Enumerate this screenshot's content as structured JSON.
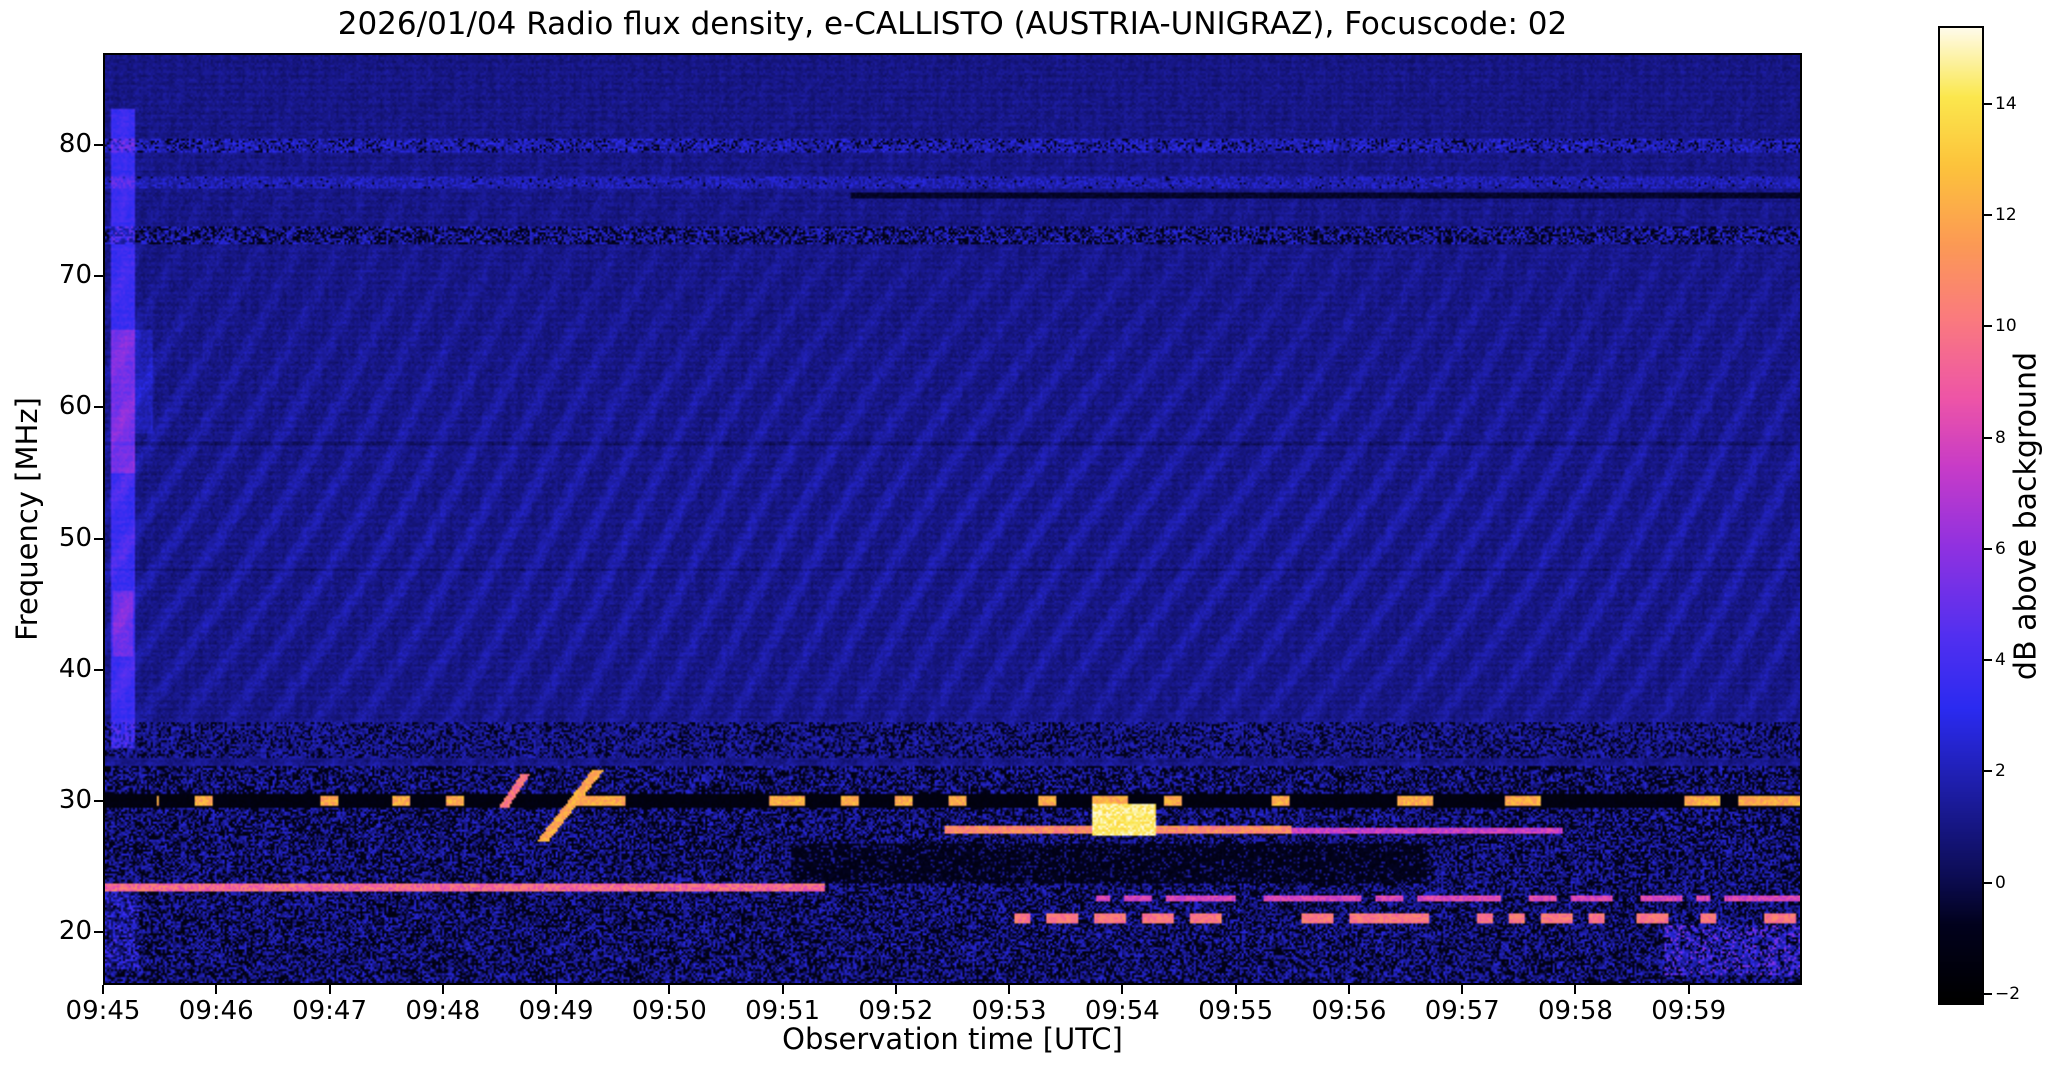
{
  "figure": {
    "title": "2026/01/04  Radio flux density, e-CALLISTO (AUSTRIA-UNIGRAZ), Focuscode: 02",
    "xlabel": "Observation time [UTC]",
    "ylabel": "Frequency [MHz]",
    "colorbar_label": "dB above background"
  },
  "chart_data": {
    "type": "heatmap",
    "title": "2026/01/04  Radio flux density, e-CALLISTO (AUSTRIA-UNIGRAZ), Focuscode: 02",
    "xlabel": "Observation time [UTC]",
    "ylabel": "Frequency [MHz]",
    "time_start_utc": "09:45",
    "time_end_utc": "10:00",
    "x_tick_labels": [
      "09:45",
      "09:46",
      "09:47",
      "09:48",
      "09:49",
      "09:50",
      "09:51",
      "09:52",
      "09:53",
      "09:54",
      "09:55",
      "09:56",
      "09:57",
      "09:58",
      "09:59"
    ],
    "y_tick_values": [
      20,
      30,
      40,
      50,
      60,
      70,
      80
    ],
    "y_tick_labels": [
      "20",
      "30",
      "40",
      "50",
      "60",
      "70",
      "80"
    ],
    "freq_range_mhz": [
      16,
      87
    ],
    "value_range": [
      -2.2,
      15.4
    ],
    "colorbar": {
      "label": "dB above background",
      "tick_values": [
        14,
        12,
        10,
        8,
        6,
        4,
        2,
        0,
        -2
      ],
      "tick_labels": [
        "14",
        "12",
        "10",
        "8",
        "6",
        "4",
        "2",
        "0",
        "−2"
      ]
    },
    "colormap_stops": [
      [
        0.0,
        "#000000"
      ],
      [
        0.08,
        "#02021e"
      ],
      [
        0.13,
        "#0d0d55"
      ],
      [
        0.22,
        "#1e1ea8"
      ],
      [
        0.3,
        "#2b2bf0"
      ],
      [
        0.38,
        "#5530f0"
      ],
      [
        0.47,
        "#9232e0"
      ],
      [
        0.55,
        "#c83cc8"
      ],
      [
        0.62,
        "#ee55a8"
      ],
      [
        0.7,
        "#fa7a80"
      ],
      [
        0.78,
        "#fc9b55"
      ],
      [
        0.86,
        "#fdc43c"
      ],
      [
        0.93,
        "#fbe84e"
      ],
      [
        1.0,
        "#fffbe8"
      ]
    ],
    "background_level_db": 1.0,
    "zone_split_mhz": 32.6,
    "ripples": {
      "fmin": 31.5,
      "fmax": 86.0,
      "center": 50,
      "width": 17,
      "amp": 0.85,
      "tfreq": 255,
      "ffreq": 1.15
    },
    "features": [
      {
        "name": "speckle-row-80mhz",
        "type": "speckle",
        "f": [
          79.6,
          80.7
        ],
        "t": [
          0,
          1
        ],
        "dark": 0.18,
        "lo": 0.7,
        "hi": 3.2
      },
      {
        "name": "band-77mhz",
        "type": "speckle",
        "f": [
          76.8,
          77.8
        ],
        "t": [
          0,
          1
        ],
        "dark": 0.04,
        "lo": 0.9,
        "hi": 2.8
      },
      {
        "name": "dark-line-76mhz-right",
        "type": "set",
        "f": [
          76.1,
          76.6
        ],
        "t": [
          0.44,
          1
        ],
        "value": -0.9,
        "noise": 0.6
      },
      {
        "name": "speckle-row-73mhz",
        "type": "speckle",
        "f": [
          72.5,
          73.9
        ],
        "t": [
          0,
          1
        ],
        "dark": 0.38,
        "lo": 0.3,
        "hi": 3.0
      },
      {
        "name": "speckle-band-34mhz",
        "type": "speckle",
        "f": [
          33.2,
          35.9
        ],
        "t": [
          0,
          1
        ],
        "dark": 0.32,
        "lo": 0.3,
        "hi": 2.4
      },
      {
        "name": "start-burst-0945",
        "type": "add",
        "f": [
          34,
          83
        ],
        "t": [
          0.003,
          0.017
        ],
        "value": 2.6
      },
      {
        "name": "start-burst-core-60mhz",
        "type": "add",
        "f": [
          55,
          66
        ],
        "t": [
          0.003,
          0.017
        ],
        "value": 1.7
      },
      {
        "name": "start-burst-core-43mhz",
        "type": "add",
        "f": [
          41,
          46
        ],
        "t": [
          0.004,
          0.016
        ],
        "value": 1.5
      },
      {
        "name": "start-burst-tail",
        "type": "add",
        "f": [
          58,
          66
        ],
        "t": [
          0.017,
          0.028
        ],
        "value": 0.9
      },
      {
        "name": "black-row-30mhz",
        "type": "set",
        "f": [
          29.3,
          30.5
        ],
        "t": [
          0,
          1
        ],
        "value": -1.7,
        "noise": 0.5
      },
      {
        "name": "orange-dash-row-30mhz",
        "type": "dashes",
        "f": [
          29.5,
          30.25
        ],
        "t": [
          0.03,
          1
        ],
        "value": 11,
        "fill": 0.3,
        "seg": 9,
        "noise": 2.2,
        "seed": 3
      },
      {
        "name": "emission-line-23mhz",
        "type": "set",
        "f": [
          22.95,
          23.5
        ],
        "t": [
          0,
          0.425
        ],
        "value": 8,
        "noise": 3
      },
      {
        "name": "dark-block-25mhz",
        "type": "speckle",
        "f": [
          23.5,
          26.6
        ],
        "t": [
          0.405,
          0.78
        ],
        "dark": 0.82,
        "lo": 0.0,
        "hi": 1.8
      },
      {
        "name": "emission-line-27mhz-strong",
        "type": "max",
        "f": [
          27.35,
          27.95
        ],
        "t": [
          0.495,
          0.7
        ],
        "value": 9.5,
        "noise": 2.5
      },
      {
        "name": "emission-line-27mhz-faint",
        "type": "max",
        "f": [
          27.4,
          27.85
        ],
        "t": [
          0.7,
          0.86
        ],
        "value": 6.5,
        "noise": 2
      },
      {
        "name": "burst-blob-0954",
        "type": "max",
        "f": [
          27.2,
          29.7
        ],
        "t": [
          0.582,
          0.62
        ],
        "value": 13.5,
        "noise": 2
      },
      {
        "name": "drift-streak-0949",
        "type": "diagonal",
        "t0": 0.258,
        "f": [
          26.8,
          32.3
        ],
        "slope": 0.006,
        "halfwidth": 0.0035,
        "value": 11,
        "noise": 2
      },
      {
        "name": "drift-streak-0948",
        "type": "diagonal",
        "t0": 0.235,
        "f": [
          29.4,
          31.9
        ],
        "slope": 0.005,
        "halfwidth": 0.0028,
        "value": 9,
        "noise": 2
      },
      {
        "name": "emission-line-22mhz",
        "type": "dashes",
        "f": [
          22.15,
          22.6
        ],
        "t": [
          0.58,
          1
        ],
        "value": 7,
        "fill": 0.6,
        "seg": 7,
        "noise": 2,
        "seed": 7
      },
      {
        "name": "dash-row-21mhz",
        "type": "dashes",
        "f": [
          20.55,
          21.2
        ],
        "t": [
          0.52,
          1
        ],
        "value": 9,
        "fill": 0.42,
        "seg": 8,
        "noise": 2,
        "seed": 11
      },
      {
        "name": "right-edge-pink-low",
        "type": "add",
        "f": [
          16.5,
          20.3
        ],
        "t": [
          0.92,
          1
        ],
        "value": 3.2,
        "prob": 0.45
      },
      {
        "name": "left-low-bright",
        "type": "add",
        "f": [
          17,
          23
        ],
        "t": [
          0,
          0.02
        ],
        "value": 1.5,
        "prob": 0.8
      }
    ]
  }
}
